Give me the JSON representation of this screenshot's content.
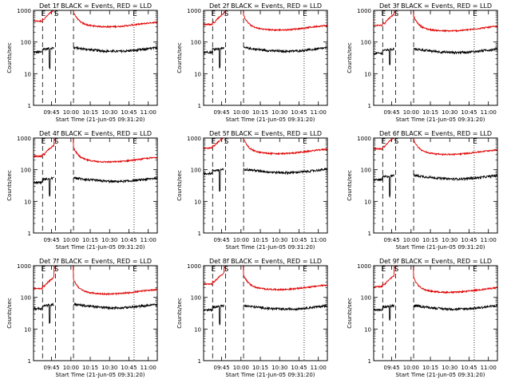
{
  "figure": {
    "xlabel": "Start Time (21-Jun-05 09:31:20)",
    "ylabel": "Counts/sec",
    "marker_labels": [
      "E",
      "S",
      "E"
    ],
    "colors": {
      "events": "#000000",
      "lld": "#e00000",
      "axes": "#000000",
      "background": "#ffffff"
    }
  },
  "chart_data": [
    {
      "type": "line",
      "title": "Det 1f BLACK = Events, RED = LLD",
      "ylabel": "Counts/sec",
      "xlabel": "Start Time (21-Jun-05 09:31:20)",
      "x_ticks": [
        "09:45",
        "10:00",
        "10:15",
        "10:30",
        "10:45",
        "11:00"
      ],
      "y_ticks": [
        "1",
        "10",
        "100",
        "1000"
      ],
      "ylim": [
        1,
        1000
      ],
      "yscale": "log",
      "marker_lines": [
        {
          "label": "E",
          "x": "09:38"
        },
        {
          "label": "S",
          "x": "09:48"
        },
        {
          "label": "",
          "x": "10:02"
        },
        {
          "label": "E",
          "x": "10:49"
        }
      ],
      "series": [
        {
          "name": "Events",
          "color": "#000000",
          "level": 60,
          "min_dip": 15
        },
        {
          "name": "LLD",
          "color": "#e00000",
          "level": 380,
          "peak": 1000
        }
      ]
    },
    {
      "type": "line",
      "title": "Det 2f BLACK = Events, RED = LLD",
      "ylabel": "Counts/sec",
      "xlabel": "Start Time (21-Jun-05 09:31:20)",
      "x_ticks": [
        "09:45",
        "10:00",
        "10:15",
        "10:30",
        "10:45",
        "11:00"
      ],
      "y_ticks": [
        "1",
        "10",
        "100",
        "1000"
      ],
      "ylim": [
        1,
        1000
      ],
      "yscale": "log",
      "marker_lines": [
        {
          "label": "E",
          "x": "09:38"
        },
        {
          "label": "S",
          "x": "09:48"
        },
        {
          "label": "",
          "x": "10:02"
        },
        {
          "label": "E",
          "x": "10:49"
        }
      ],
      "series": [
        {
          "name": "Events",
          "color": "#000000",
          "level": 60,
          "min_dip": 15
        },
        {
          "name": "LLD",
          "color": "#e00000",
          "level": 300,
          "peak": 1000
        }
      ]
    },
    {
      "type": "line",
      "title": "Det 3f BLACK = Events, RED = LLD",
      "ylabel": "Counts/sec",
      "xlabel": "Start Time (21-Jun-05 09:31:20)",
      "x_ticks": [
        "09:45",
        "10:00",
        "10:15",
        "10:30",
        "10:45",
        "11:00"
      ],
      "y_ticks": [
        "1",
        "10",
        "100",
        "1000"
      ],
      "ylim": [
        1,
        1000
      ],
      "yscale": "log",
      "marker_lines": [
        {
          "label": "E",
          "x": "09:38"
        },
        {
          "label": "S",
          "x": "09:48"
        },
        {
          "label": "",
          "x": "10:02"
        },
        {
          "label": "E",
          "x": "10:49"
        }
      ],
      "series": [
        {
          "name": "Events",
          "color": "#000000",
          "level": 55,
          "min_dip": 20
        },
        {
          "name": "LLD",
          "color": "#e00000",
          "level": 280,
          "peak": 1000
        }
      ]
    },
    {
      "type": "line",
      "title": "Det 4f BLACK = Events, RED = LLD",
      "ylabel": "Counts/sec",
      "xlabel": "Start Time (21-Jun-05 09:31:20)",
      "x_ticks": [
        "09:45",
        "10:00",
        "10:15",
        "10:30",
        "10:45",
        "11:00"
      ],
      "y_ticks": [
        "1",
        "10",
        "100",
        "1000"
      ],
      "ylim": [
        1,
        1000
      ],
      "yscale": "log",
      "marker_lines": [
        {
          "label": "E",
          "x": "09:38"
        },
        {
          "label": "S",
          "x": "09:48"
        },
        {
          "label": "",
          "x": "10:02"
        },
        {
          "label": "E",
          "x": "10:49"
        }
      ],
      "series": [
        {
          "name": "Events",
          "color": "#000000",
          "level": 50,
          "min_dip": 15
        },
        {
          "name": "LLD",
          "color": "#e00000",
          "level": 220,
          "peak": 1000
        }
      ]
    },
    {
      "type": "line",
      "title": "Det 5f BLACK = Events, RED = LLD",
      "ylabel": "Counts/sec",
      "xlabel": "Start Time (21-Jun-05 09:31:20)",
      "x_ticks": [
        "09:45",
        "10:00",
        "10:15",
        "10:30",
        "10:45",
        "11:00"
      ],
      "y_ticks": [
        "1",
        "10",
        "100",
        "1000"
      ],
      "ylim": [
        1,
        1000
      ],
      "yscale": "log",
      "marker_lines": [
        {
          "label": "E",
          "x": "09:38"
        },
        {
          "label": "S",
          "x": "09:48"
        },
        {
          "label": "",
          "x": "10:02"
        },
        {
          "label": "E",
          "x": "10:49"
        }
      ],
      "series": [
        {
          "name": "Events",
          "color": "#000000",
          "level": 95,
          "min_dip": 20
        },
        {
          "name": "LLD",
          "color": "#e00000",
          "level": 400,
          "peak": 1000
        }
      ]
    },
    {
      "type": "line",
      "title": "Det 6f BLACK = Events, RED = LLD",
      "ylabel": "Counts/sec",
      "xlabel": "Start Time (21-Jun-05 09:31:20)",
      "x_ticks": [
        "09:45",
        "10:00",
        "10:15",
        "10:30",
        "10:45",
        "11:00"
      ],
      "y_ticks": [
        "1",
        "10",
        "100",
        "1000"
      ],
      "ylim": [
        1,
        1000
      ],
      "yscale": "log",
      "marker_lines": [
        {
          "label": "E",
          "x": "09:38"
        },
        {
          "label": "S",
          "x": "09:48"
        },
        {
          "label": "",
          "x": "10:02"
        },
        {
          "label": "E",
          "x": "10:49"
        }
      ],
      "series": [
        {
          "name": "Events",
          "color": "#000000",
          "level": 60,
          "min_dip": 15
        },
        {
          "name": "LLD",
          "color": "#e00000",
          "level": 380,
          "peak": 1000
        }
      ]
    },
    {
      "type": "line",
      "title": "Det 7f BLACK = Events, RED = LLD",
      "ylabel": "Counts/sec",
      "xlabel": "Start Time (21-Jun-05 09:31:20)",
      "x_ticks": [
        "09:45",
        "10:00",
        "10:15",
        "10:30",
        "10:45",
        "11:00"
      ],
      "y_ticks": [
        "1",
        "10",
        "100",
        "1000"
      ],
      "ylim": [
        1,
        1000
      ],
      "yscale": "log",
      "marker_lines": [
        {
          "label": "E",
          "x": "09:38"
        },
        {
          "label": "S",
          "x": "09:48"
        },
        {
          "label": "",
          "x": "10:02"
        },
        {
          "label": "E",
          "x": "10:49"
        }
      ],
      "series": [
        {
          "name": "Events",
          "color": "#000000",
          "level": 55,
          "min_dip": 15
        },
        {
          "name": "LLD",
          "color": "#e00000",
          "level": 160,
          "peak": 1000
        }
      ]
    },
    {
      "type": "line",
      "title": "Det 8f BLACK = Events, RED = LLD",
      "ylabel": "Counts/sec",
      "xlabel": "Start Time (21-Jun-05 09:31:20)",
      "x_ticks": [
        "09:45",
        "10:00",
        "10:15",
        "10:30",
        "10:45",
        "11:00"
      ],
      "y_ticks": [
        "1",
        "10",
        "100",
        "1000"
      ],
      "ylim": [
        1,
        1000
      ],
      "yscale": "log",
      "marker_lines": [
        {
          "label": "E",
          "x": "09:38"
        },
        {
          "label": "S",
          "x": "09:48"
        },
        {
          "label": "",
          "x": "10:02"
        },
        {
          "label": "E",
          "x": "10:49"
        }
      ],
      "series": [
        {
          "name": "Events",
          "color": "#000000",
          "level": 50,
          "min_dip": 15
        },
        {
          "name": "LLD",
          "color": "#e00000",
          "level": 220,
          "peak": 1000
        }
      ]
    },
    {
      "type": "line",
      "title": "Det 9f BLACK = Events, RED = LLD",
      "ylabel": "Counts/sec",
      "xlabel": "Start Time (21-Jun-05 09:31:20)",
      "x_ticks": [
        "09:45",
        "10:00",
        "10:15",
        "10:30",
        "10:45",
        "11:00"
      ],
      "y_ticks": [
        "1",
        "10",
        "100",
        "1000"
      ],
      "ylim": [
        1,
        1000
      ],
      "yscale": "log",
      "marker_lines": [
        {
          "label": "E",
          "x": "09:38"
        },
        {
          "label": "S",
          "x": "09:48"
        },
        {
          "label": "",
          "x": "10:02"
        },
        {
          "label": "E",
          "x": "10:49"
        }
      ],
      "series": [
        {
          "name": "Events",
          "color": "#000000",
          "level": 50,
          "min_dip": 20
        },
        {
          "name": "LLD",
          "color": "#e00000",
          "level": 180,
          "peak": 1000
        }
      ]
    }
  ]
}
